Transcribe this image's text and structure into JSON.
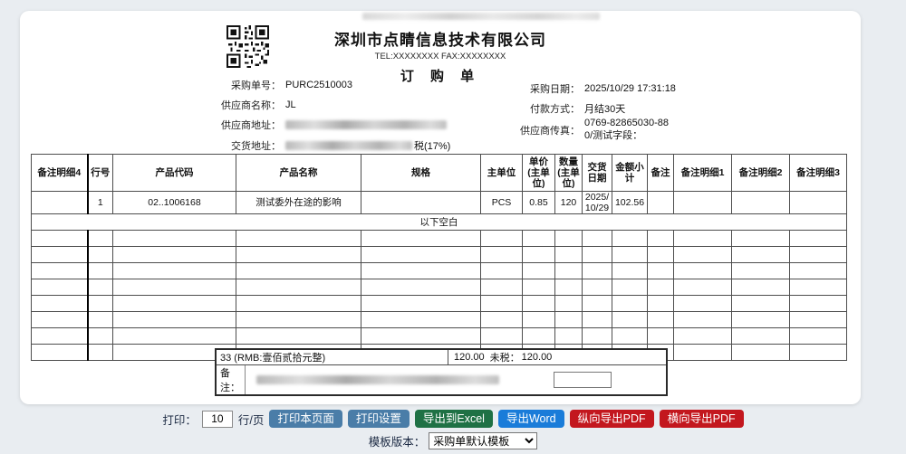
{
  "doc": {
    "company": "深圳市点睛信息技术有限公司",
    "contact": "TEL:XXXXXXXX  FAX:XXXXXXXX",
    "title": "订 购 单",
    "fields": {
      "order_no_label": "采购单号：",
      "order_no": "PURC2510003",
      "supplier_label": "供应商名称：",
      "supplier": "JL",
      "supplier_addr_label": "供应商地址：",
      "delivery_addr_label": "交货地址：",
      "delivery_addr_suffix": "税(17%)",
      "date_label": "采购日期：",
      "date": "2025/10/29 17:31:18",
      "payment_label": "付款方式：",
      "payment": "月结30天",
      "fax_label": "供应商传真：",
      "fax": "0769-82865030-880/测试字段："
    },
    "table": {
      "headers": [
        "备注明细4",
        "行号",
        "产品代码",
        "产品名称",
        "规格",
        "主单位",
        "单价(主单位)",
        "数量(主单位)",
        "交货日期",
        "金额小计",
        "备注",
        "备注明细1",
        "备注明细2",
        "备注明细3"
      ],
      "row": [
        "",
        "1",
        "02..1006168",
        "测试委外在途的影响",
        "",
        "PCS",
        "0.85",
        "120",
        "2025/10/29",
        "102.56",
        "",
        "",
        "",
        ""
      ],
      "blank_text": "以下空白",
      "empty_rows": 8
    },
    "summary": {
      "total_text": "33  (RMB:壹佰贰拾元整)",
      "amount": "120.00",
      "untaxed_label": "未税：",
      "untaxed_amount": "120.00",
      "remark_label": "备注："
    }
  },
  "controls": {
    "print_label": "打印：",
    "rows_per_page": "10",
    "rows_unit": "行/页",
    "buttons": [
      {
        "label": "打印本页面",
        "color": "#4a7da8"
      },
      {
        "label": "打印设置",
        "color": "#4a7da8"
      },
      {
        "label": "导出到Excel",
        "color": "#1f7145"
      },
      {
        "label": "导出Word",
        "color": "#1a7cd9"
      },
      {
        "label": "纵向导出PDF",
        "color": "#c3171e"
      },
      {
        "label": "横向导出PDF",
        "color": "#c3171e"
      }
    ],
    "template_label": "模板版本：",
    "template_value": "采购单默认模板"
  }
}
